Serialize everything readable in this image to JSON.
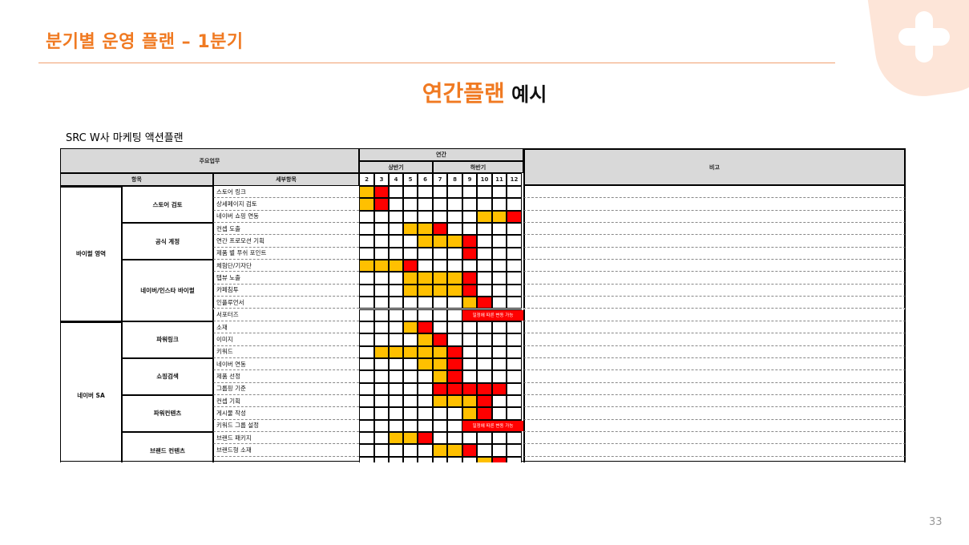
{
  "slide": {
    "title": "분기별 운영 플랜 – 1분기",
    "heading_highlight": "연간플랜",
    "heading_rest": " 예시",
    "page_number": "33"
  },
  "plan": {
    "caption": "SRC W사 마케팅 액션플랜",
    "header": {
      "main_tasks": "주요업무",
      "year": "연간",
      "first_half": "상반기",
      "second_half": "하반기",
      "remarks": "비고",
      "category": "항목",
      "subcategory": "세부항목",
      "months": [
        "2",
        "3",
        "4",
        "5",
        "6",
        "7",
        "8",
        "9",
        "10",
        "11",
        "12"
      ]
    },
    "colors": {
      "orange": "#ffc000",
      "red": "#ff0000",
      "header_bg": "#d9d9d9"
    },
    "sections": [
      {
        "name": "바이럴 영역",
        "groups": [
          {
            "name": "스토어 검토",
            "rows": [
              {
                "label": "스토어 링크",
                "cells": [
                  "o",
                  "r",
                  "",
                  "",
                  "",
                  "",
                  "",
                  "",
                  "",
                  "",
                  ""
                ]
              },
              {
                "label": "상세페이지 검토",
                "cells": [
                  "o",
                  "r",
                  "",
                  "",
                  "",
                  "",
                  "",
                  "",
                  "",
                  "",
                  ""
                ]
              },
              {
                "label": "네이버 쇼핑 연동",
                "cells": [
                  "",
                  "",
                  "",
                  "",
                  "",
                  "",
                  "",
                  "",
                  "o",
                  "o",
                  "r"
                ]
              }
            ]
          },
          {
            "name": "공식 계정",
            "rows": [
              {
                "label": "컨셉 도출",
                "cells": [
                  "",
                  "",
                  "",
                  "o",
                  "o",
                  "r",
                  "",
                  "",
                  "",
                  "",
                  ""
                ]
              },
              {
                "label": "연간 프로모션 기획",
                "cells": [
                  "",
                  "",
                  "",
                  "",
                  "o",
                  "o",
                  "o",
                  "r",
                  "",
                  "",
                  ""
                ]
              },
              {
                "label": "제품 별 푸쉬 포인트",
                "cells": [
                  "",
                  "",
                  "",
                  "",
                  "",
                  "",
                  "",
                  "r",
                  "",
                  "",
                  ""
                ]
              }
            ]
          },
          {
            "name": "네이버/인스타 바이럴",
            "rows": [
              {
                "label": "체험단/기자단",
                "cells": [
                  "o",
                  "o",
                  "o",
                  "r",
                  "",
                  "",
                  "",
                  "",
                  "",
                  "",
                  ""
                ]
              },
              {
                "label": "탭뷰 노출",
                "cells": [
                  "",
                  "",
                  "",
                  "o",
                  "o",
                  "o",
                  "o",
                  "r",
                  "",
                  "",
                  ""
                ]
              },
              {
                "label": "카페침투",
                "cells": [
                  "",
                  "",
                  "",
                  "o",
                  "o",
                  "o",
                  "o",
                  "r",
                  "",
                  "",
                  ""
                ]
              },
              {
                "label": "인플루언서",
                "cells": [
                  "",
                  "",
                  "",
                  "",
                  "",
                  "",
                  "",
                  "o",
                  "r",
                  "",
                  ""
                ]
              },
              {
                "label": "서포터즈",
                "cells": [
                  "",
                  "",
                  "",
                  "",
                  "",
                  "",
                  "",
                  "",
                  "",
                  "",
                  ""
                ],
                "note": "일정에 따른 변동 가능"
              }
            ]
          }
        ]
      },
      {
        "name": "네이버 SA",
        "groups": [
          {
            "name": "파워링크",
            "rows": [
              {
                "label": "소재",
                "cells": [
                  "",
                  "",
                  "",
                  "o",
                  "r",
                  "",
                  "",
                  "",
                  "",
                  "",
                  ""
                ]
              },
              {
                "label": "이미지",
                "cells": [
                  "",
                  "",
                  "",
                  "",
                  "o",
                  "r",
                  "",
                  "",
                  "",
                  "",
                  ""
                ]
              },
              {
                "label": "키워드",
                "cells": [
                  "",
                  "o",
                  "o",
                  "o",
                  "o",
                  "o",
                  "r",
                  "",
                  "",
                  "",
                  ""
                ]
              }
            ]
          },
          {
            "name": "쇼핑검색",
            "rows": [
              {
                "label": "네이버 연동",
                "cells": [
                  "",
                  "",
                  "",
                  "",
                  "o",
                  "o",
                  "r",
                  "",
                  "",
                  "",
                  ""
                ]
              },
              {
                "label": "제품 선정",
                "cells": [
                  "",
                  "",
                  "",
                  "",
                  "",
                  "o",
                  "r",
                  "",
                  "",
                  "",
                  ""
                ]
              },
              {
                "label": "그룹핑 기준",
                "cells": [
                  "",
                  "",
                  "",
                  "",
                  "",
                  "r",
                  "r",
                  "r",
                  "r",
                  "r",
                  ""
                ]
              }
            ]
          },
          {
            "name": "파워컨텐츠",
            "rows": [
              {
                "label": "컨셉 기획",
                "cells": [
                  "",
                  "",
                  "",
                  "",
                  "",
                  "o",
                  "o",
                  "o",
                  "r",
                  "",
                  ""
                ]
              },
              {
                "label": "게시물 작성",
                "cells": [
                  "",
                  "",
                  "",
                  "",
                  "",
                  "",
                  "",
                  "o",
                  "r",
                  "",
                  ""
                ]
              },
              {
                "label": "키워드 그룹 설정",
                "cells": [
                  "",
                  "",
                  "",
                  "",
                  "",
                  "",
                  "",
                  "",
                  "",
                  "",
                  ""
                ],
                "note": "일정에 따른 변동 가능"
              }
            ]
          },
          {
            "name": "브랜드 컨텐츠",
            "rows": [
              {
                "label": "브랜드 패키지",
                "cells": [
                  "",
                  "",
                  "o",
                  "o",
                  "r",
                  "",
                  "",
                  "",
                  "",
                  "",
                  ""
                ]
              },
              {
                "label": "브랜드형 소재",
                "cells": [
                  "",
                  "",
                  "",
                  "",
                  "",
                  "o",
                  "o",
                  "r",
                  "",
                  "",
                  ""
                ]
              },
              {
                "label": "",
                "cells": [
                  "",
                  "",
                  "",
                  "",
                  "",
                  "",
                  "",
                  "",
                  "o",
                  "r",
                  ""
                ]
              }
            ]
          }
        ]
      }
    ]
  }
}
